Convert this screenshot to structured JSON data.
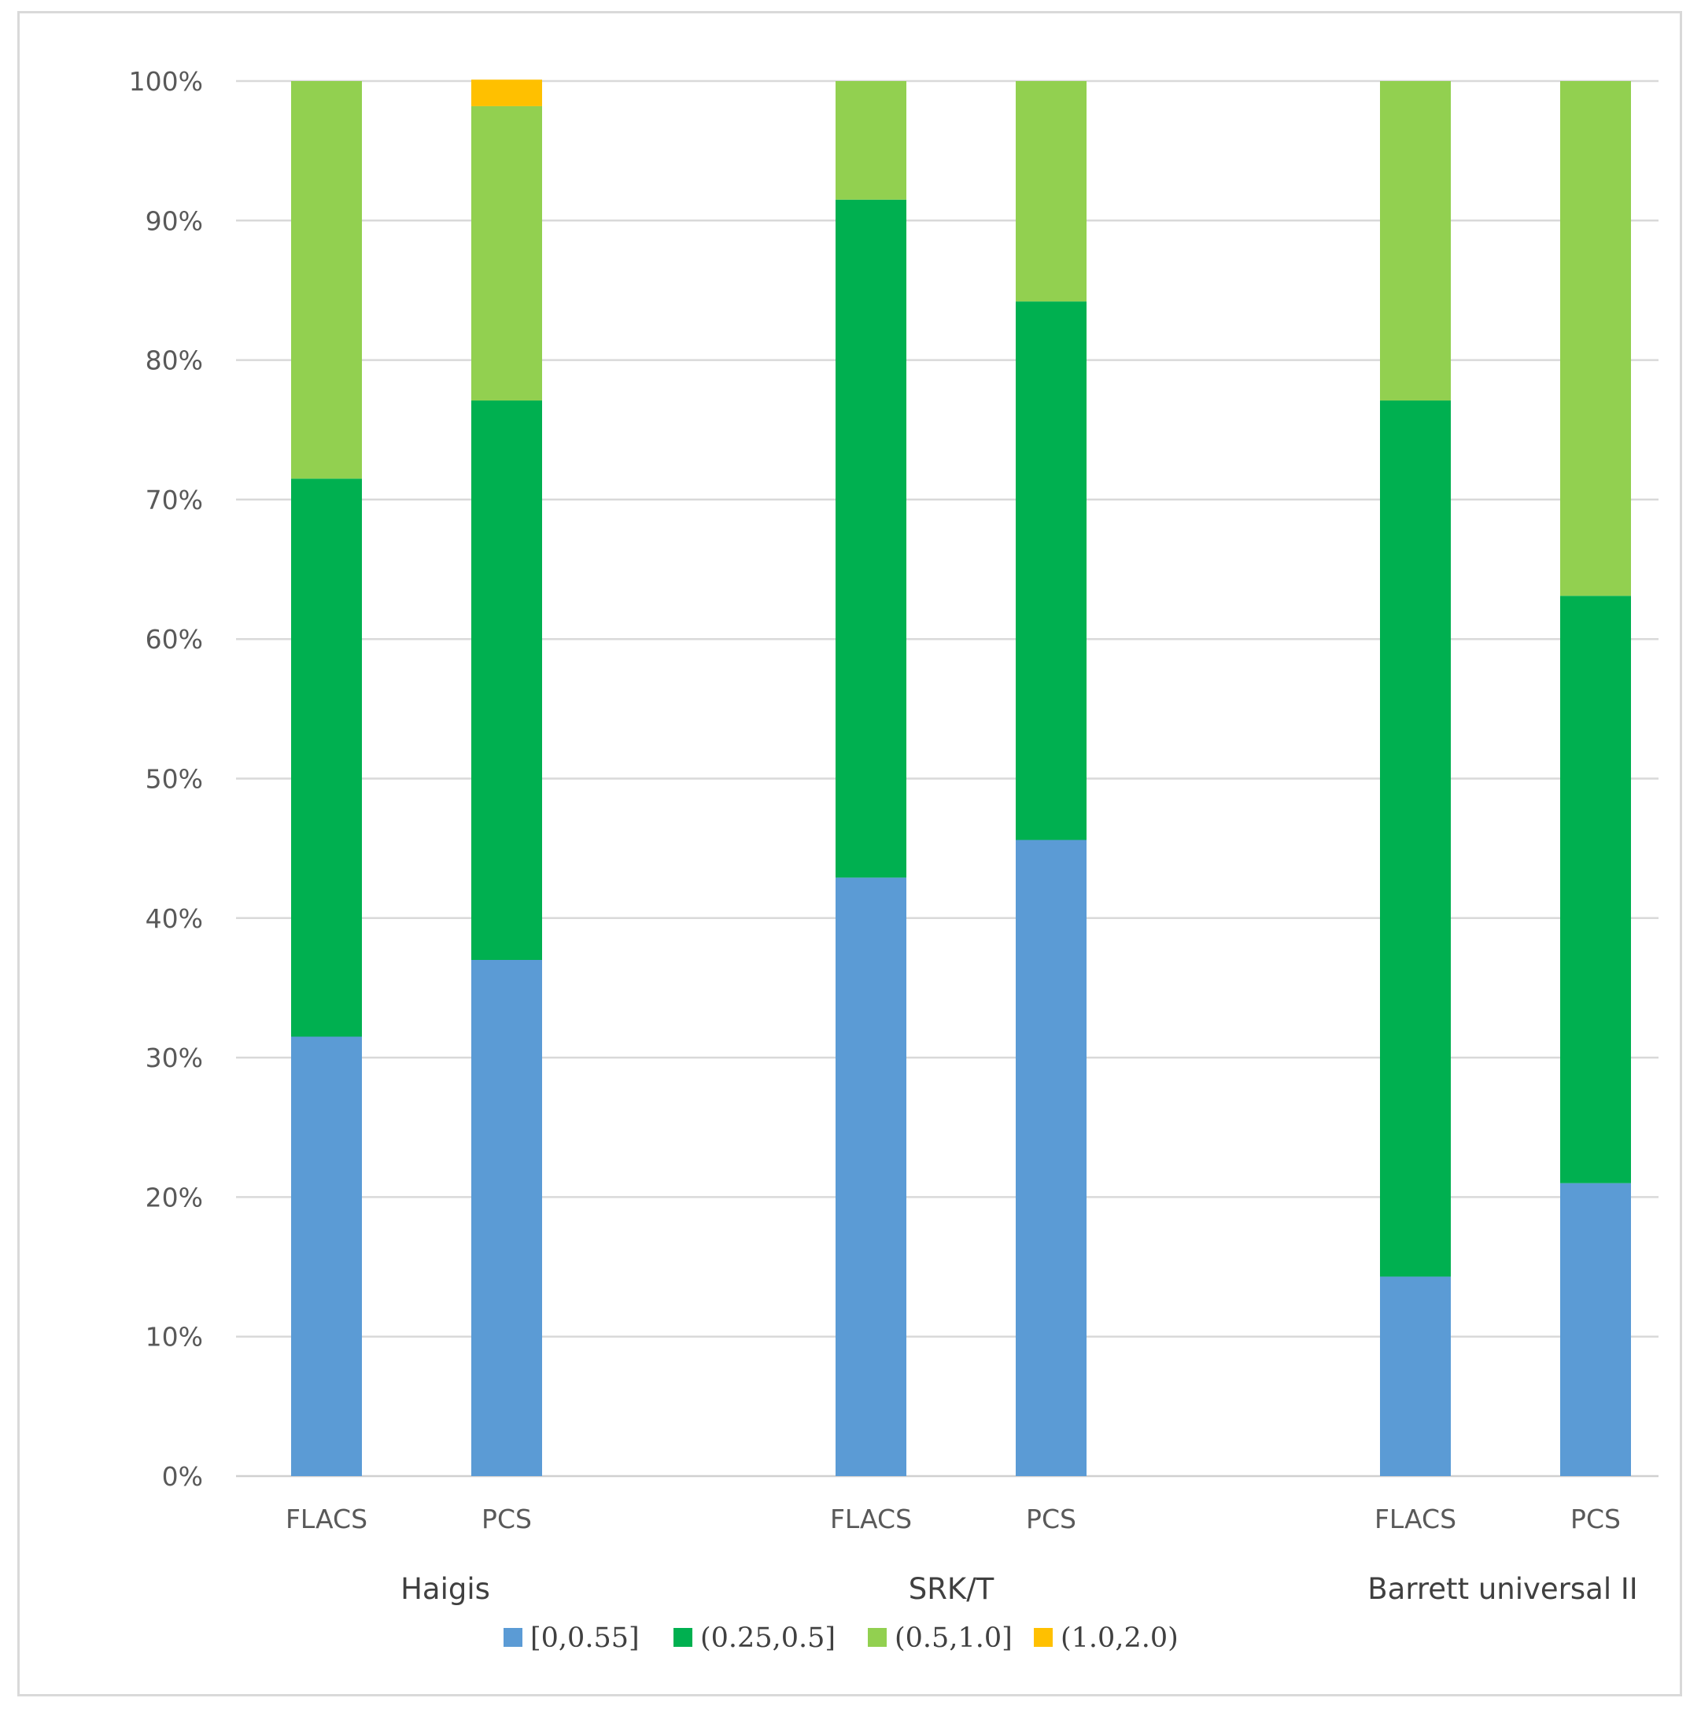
{
  "chart_data": {
    "type": "bar",
    "stacked": true,
    "normalized": true,
    "title": "",
    "xlabel": "",
    "ylabel": "",
    "ylim": [
      0,
      100
    ],
    "yticks": [
      "0%",
      "10%",
      "20%",
      "30%",
      "40%",
      "50%",
      "60%",
      "70%",
      "80%",
      "90%",
      "100%"
    ],
    "grid": true,
    "legend_position": "bottom",
    "groups": [
      {
        "label": "Haigis",
        "categories": [
          "FLACS",
          "PCS"
        ]
      },
      {
        "label": "SRK/T",
        "categories": [
          "FLACS",
          "PCS"
        ]
      },
      {
        "label": "Barrett universal II",
        "categories": [
          "FLACS",
          "PCS"
        ]
      }
    ],
    "categories": [
      "FLACS",
      "PCS",
      "FLACS",
      "PCS",
      "FLACS",
      "PCS"
    ],
    "series": [
      {
        "name": "[0,0.55]",
        "color": "#5b9bd5",
        "values": [
          31.5,
          37.0,
          42.9,
          45.6,
          14.3,
          21.0
        ]
      },
      {
        "name": "(0.25,0.5]",
        "color": "#00b050",
        "values": [
          40.0,
          40.1,
          48.6,
          38.6,
          62.8,
          42.1
        ]
      },
      {
        "name": "(0.5,1.0]",
        "color": "#92d050",
        "values": [
          28.5,
          21.1,
          8.5,
          15.8,
          22.9,
          36.9
        ]
      },
      {
        "name": "(1.0,2.0)",
        "color": "#ffc000",
        "values": [
          0,
          1.9,
          0,
          0,
          0,
          0
        ]
      }
    ]
  }
}
